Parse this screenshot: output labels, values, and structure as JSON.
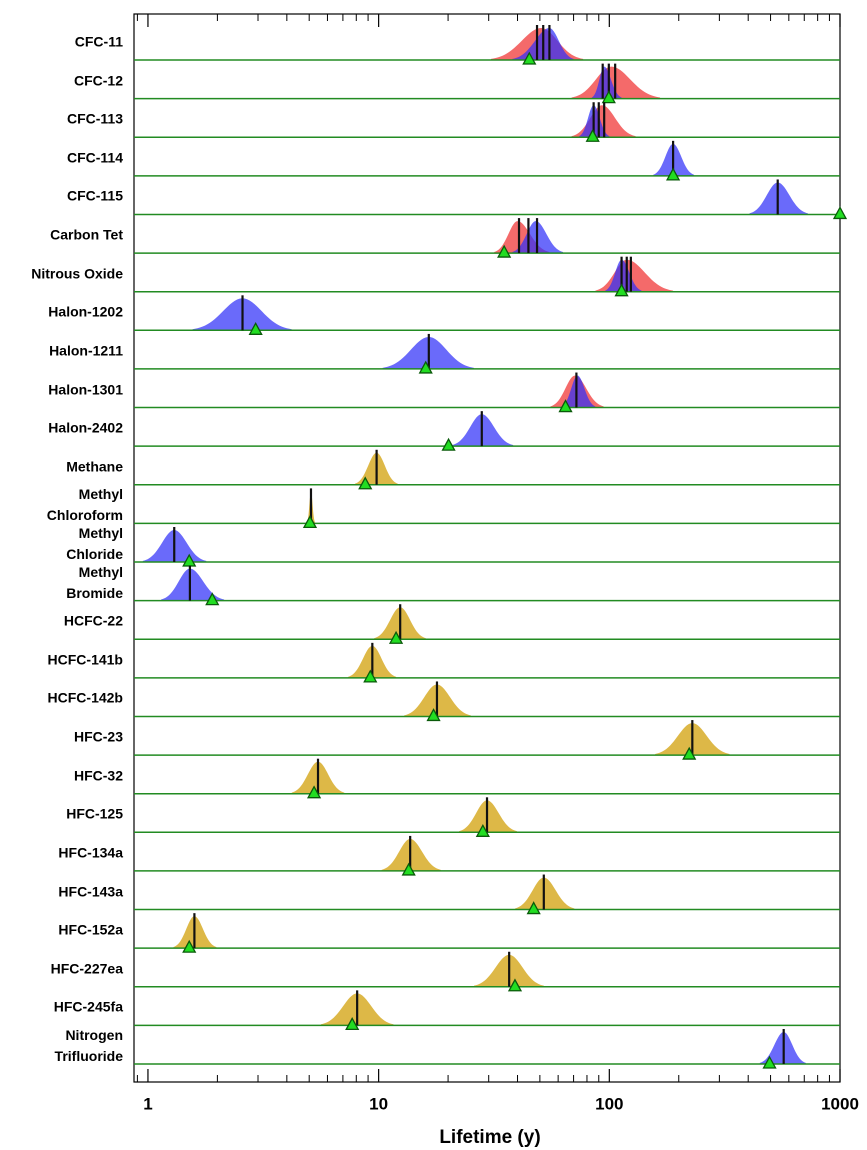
{
  "chart_data": {
    "type": "ridgeline",
    "xlabel": "Lifetime (y)",
    "xscale": "log",
    "xlim": [
      0.87,
      1000
    ],
    "xticks": [
      1,
      10,
      100,
      1000
    ],
    "minor_ticks": true,
    "opacity": 0.72,
    "line_color": "#111111",
    "baseline_color": "#228b22",
    "marker_color": "#22dd22",
    "rows": [
      {
        "name": "CFC-11",
        "dists": [
          {
            "color": "#f03030",
            "low": 30.7,
            "peak": 50.7,
            "high": 77
          },
          {
            "color": "#3030f8",
            "low": 38,
            "peak": 55,
            "high": 70
          }
        ],
        "lines": [
          48.6,
          51.7,
          55
        ],
        "model": 45
      },
      {
        "name": "CFC-12",
        "dists": [
          {
            "color": "#f03030",
            "low": 68.6,
            "peak": 102,
            "high": 166
          },
          {
            "color": "#3030f8",
            "low": 84,
            "peak": 95,
            "high": 113
          }
        ],
        "lines": [
          93.6,
          99.5,
          106
        ],
        "model": 99.5
      },
      {
        "name": "CFC-113",
        "dists": [
          {
            "color": "#f03030",
            "low": 68.6,
            "peak": 93,
            "high": 130
          },
          {
            "color": "#3030f8",
            "low": 74,
            "peak": 85.5,
            "high": 100
          }
        ],
        "lines": [
          85.5,
          90,
          95
        ],
        "model": 84.7
      },
      {
        "name": "CFC-114",
        "dists": [
          {
            "color": "#3030f8",
            "low": 155,
            "peak": 189,
            "high": 233
          }
        ],
        "lines": [
          189
        ],
        "model": 189
      },
      {
        "name": "CFC-115",
        "dists": [
          {
            "color": "#3030f8",
            "low": 405,
            "peak": 537,
            "high": 726
          }
        ],
        "lines": [
          537
        ],
        "model": 1000
      },
      {
        "name": "Carbon Tet",
        "dists": [
          {
            "color": "#f03030",
            "low": 31.7,
            "peak": 40,
            "high": 55
          },
          {
            "color": "#3030f8",
            "low": 38,
            "peak": 48,
            "high": 63
          }
        ],
        "lines": [
          40.6,
          44.6,
          48.6
        ],
        "model": 35
      },
      {
        "name": "Nitrous Oxide",
        "dists": [
          {
            "color": "#f03030",
            "low": 87,
            "peak": 119,
            "high": 189
          },
          {
            "color": "#3030f8",
            "low": 96,
            "peak": 113,
            "high": 138
          }
        ],
        "lines": [
          113,
          119,
          124
        ],
        "model": 113
      },
      {
        "name": "Halon-1202",
        "dists": [
          {
            "color": "#3030f8",
            "low": 1.56,
            "peak": 2.57,
            "high": 4.2
          }
        ],
        "lines": [
          2.57
        ],
        "model": 2.93
      },
      {
        "name": "Halon-1211",
        "dists": [
          {
            "color": "#3030f8",
            "low": 10.4,
            "peak": 16.5,
            "high": 25.9
          }
        ],
        "lines": [
          16.5
        ],
        "model": 16
      },
      {
        "name": "Halon-1301",
        "dists": [
          {
            "color": "#f03030",
            "low": 55.5,
            "peak": 71,
            "high": 94.6
          },
          {
            "color": "#3030f8",
            "low": 62,
            "peak": 72.8,
            "high": 87
          }
        ],
        "lines": [
          72
        ],
        "model": 64.6
      },
      {
        "name": "Halon-2402",
        "dists": [
          {
            "color": "#3030f8",
            "low": 20.8,
            "peak": 28,
            "high": 38.3
          }
        ],
        "lines": [
          28
        ],
        "model": 20.1
      },
      {
        "name": "Methane",
        "dists": [
          {
            "color": "#d09c00",
            "low": 7.9,
            "peak": 9.8,
            "high": 12.1
          }
        ],
        "lines": [
          9.8
        ],
        "model": 8.75
      },
      {
        "name": "Methyl\nChloroform",
        "dists": [
          {
            "color": "#d09c00",
            "low": 4.89,
            "peak": 5.09,
            "high": 5.3
          }
        ],
        "lines": [
          5.09
        ],
        "model": 5.04
      },
      {
        "name": "Methyl\nChloride",
        "dists": [
          {
            "color": "#3030f8",
            "low": 0.95,
            "peak": 1.3,
            "high": 1.79
          }
        ],
        "lines": [
          1.3
        ],
        "model": 1.51
      },
      {
        "name": "Methyl\nBromide",
        "dists": [
          {
            "color": "#3030f8",
            "low": 1.14,
            "peak": 1.52,
            "high": 2.14
          }
        ],
        "lines": [
          1.52
        ],
        "model": 1.9
      },
      {
        "name": "HCFC-22",
        "dists": [
          {
            "color": "#d09c00",
            "low": 9.57,
            "peak": 12.4,
            "high": 16
          }
        ],
        "lines": [
          12.4
        ],
        "model": 11.9
      },
      {
        "name": "HCFC-141b",
        "dists": [
          {
            "color": "#d09c00",
            "low": 7.38,
            "peak": 9.39,
            "high": 11.9
          }
        ],
        "lines": [
          9.39
        ],
        "model": 9.2
      },
      {
        "name": "HCFC-142b",
        "dists": [
          {
            "color": "#d09c00",
            "low": 12.9,
            "peak": 17.9,
            "high": 25.1
          }
        ],
        "lines": [
          17.9
        ],
        "model": 17.3
      },
      {
        "name": "HFC-23",
        "dists": [
          {
            "color": "#d09c00",
            "low": 158,
            "peak": 229,
            "high": 332
          }
        ],
        "lines": [
          229
        ],
        "model": 222
      },
      {
        "name": "HFC-32",
        "dists": [
          {
            "color": "#d09c00",
            "low": 4.2,
            "peak": 5.46,
            "high": 7.1
          }
        ],
        "lines": [
          5.46
        ],
        "model": 5.25
      },
      {
        "name": "HFC-125",
        "dists": [
          {
            "color": "#d09c00",
            "low": 22.3,
            "peak": 29.5,
            "high": 39.8
          }
        ],
        "lines": [
          29.5
        ],
        "model": 28.3
      },
      {
        "name": "HFC-134a",
        "dists": [
          {
            "color": "#d09c00",
            "low": 10.3,
            "peak": 13.7,
            "high": 18.6
          }
        ],
        "lines": [
          13.7
        ],
        "model": 13.5
      },
      {
        "name": "HFC-143a",
        "dists": [
          {
            "color": "#d09c00",
            "low": 39,
            "peak": 52,
            "high": 70.6
          }
        ],
        "lines": [
          52
        ],
        "model": 47
      },
      {
        "name": "HFC-152a",
        "dists": [
          {
            "color": "#d09c00",
            "low": 1.29,
            "peak": 1.59,
            "high": 1.98
          }
        ],
        "lines": [
          1.59
        ],
        "model": 1.51
      },
      {
        "name": "HFC-227ea",
        "dists": [
          {
            "color": "#d09c00",
            "low": 25.9,
            "peak": 36.8,
            "high": 52
          }
        ],
        "lines": [
          36.8
        ],
        "model": 39
      },
      {
        "name": "HFC-245fa",
        "dists": [
          {
            "color": "#d09c00",
            "low": 5.62,
            "peak": 8.07,
            "high": 11.6
          }
        ],
        "lines": [
          8.07
        ],
        "model": 7.68
      },
      {
        "name": "Nitrogen\nTrifluoride",
        "dists": [
          {
            "color": "#3030f8",
            "low": 449,
            "peak": 570,
            "high": 711
          }
        ],
        "lines": [
          570
        ],
        "model": 495
      }
    ]
  }
}
